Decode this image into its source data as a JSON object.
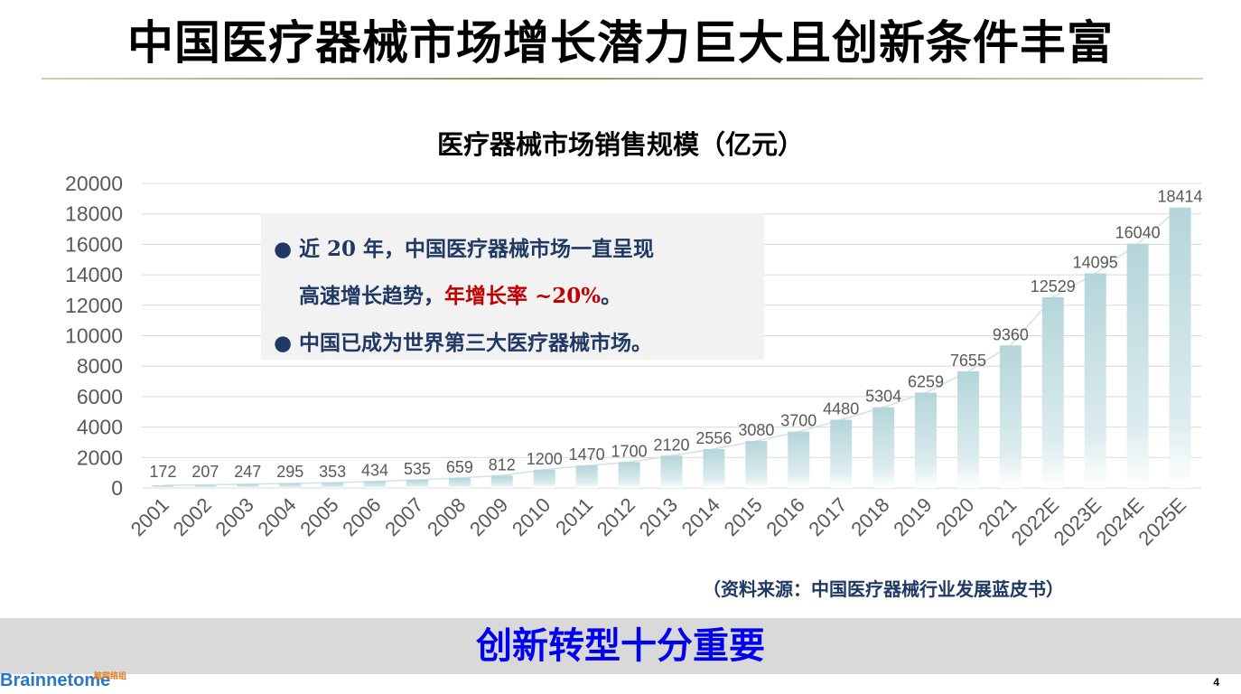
{
  "page": {
    "title": "中国医疗器械市场增长潜力巨大且创新条件丰富",
    "callout": {
      "bullet1_line1": "近 20 年，中国医疗器械市场一直呈现",
      "bullet1_line2_prefix": "高速增长趋势，",
      "bullet1_line2_highlight": "年增长率 ~20%",
      "bullet1_line2_suffix": "。",
      "bullet2": "中国已成为世界第三大医疗器械市场。",
      "bullet_symbol": "●"
    },
    "source": "（资料来源：中国医疗器械行业发展蓝皮书）",
    "footer": "创新转型十分重要",
    "logo_text": "Brainnetome",
    "logo_cn": "脑网络组",
    "page_number": "4"
  },
  "chart_data": {
    "type": "bar",
    "title": "医疗器械市场销售规模（亿元）",
    "xlabel": "",
    "ylabel": "",
    "categories": [
      "2001",
      "2002",
      "2003",
      "2004",
      "2005",
      "2006",
      "2007",
      "2008",
      "2009",
      "2010",
      "2011",
      "2012",
      "2013",
      "2014",
      "2015",
      "2016",
      "2017",
      "2018",
      "2019",
      "2020",
      "2021",
      "2022E",
      "2023E",
      "2024E",
      "2025E"
    ],
    "values": [
      172,
      207,
      247,
      295,
      353,
      434,
      535,
      659,
      812,
      1200,
      1470,
      1700,
      2120,
      2556,
      3080,
      3700,
      4480,
      5304,
      6259,
      7655,
      9360,
      12529,
      14095,
      16040,
      18414
    ],
    "ylim": [
      0,
      20000
    ],
    "yticks": [
      0,
      2000,
      4000,
      6000,
      8000,
      10000,
      12000,
      14000,
      16000,
      18000,
      20000
    ],
    "grid": true,
    "data_labels": true,
    "trendline": true,
    "colors": {
      "bar_top": "#b4d5da",
      "bar_bottom": "#ffffff",
      "grid": "#d9d9d9",
      "axis_text": "#595959",
      "trend": "#cfe3e6"
    }
  }
}
